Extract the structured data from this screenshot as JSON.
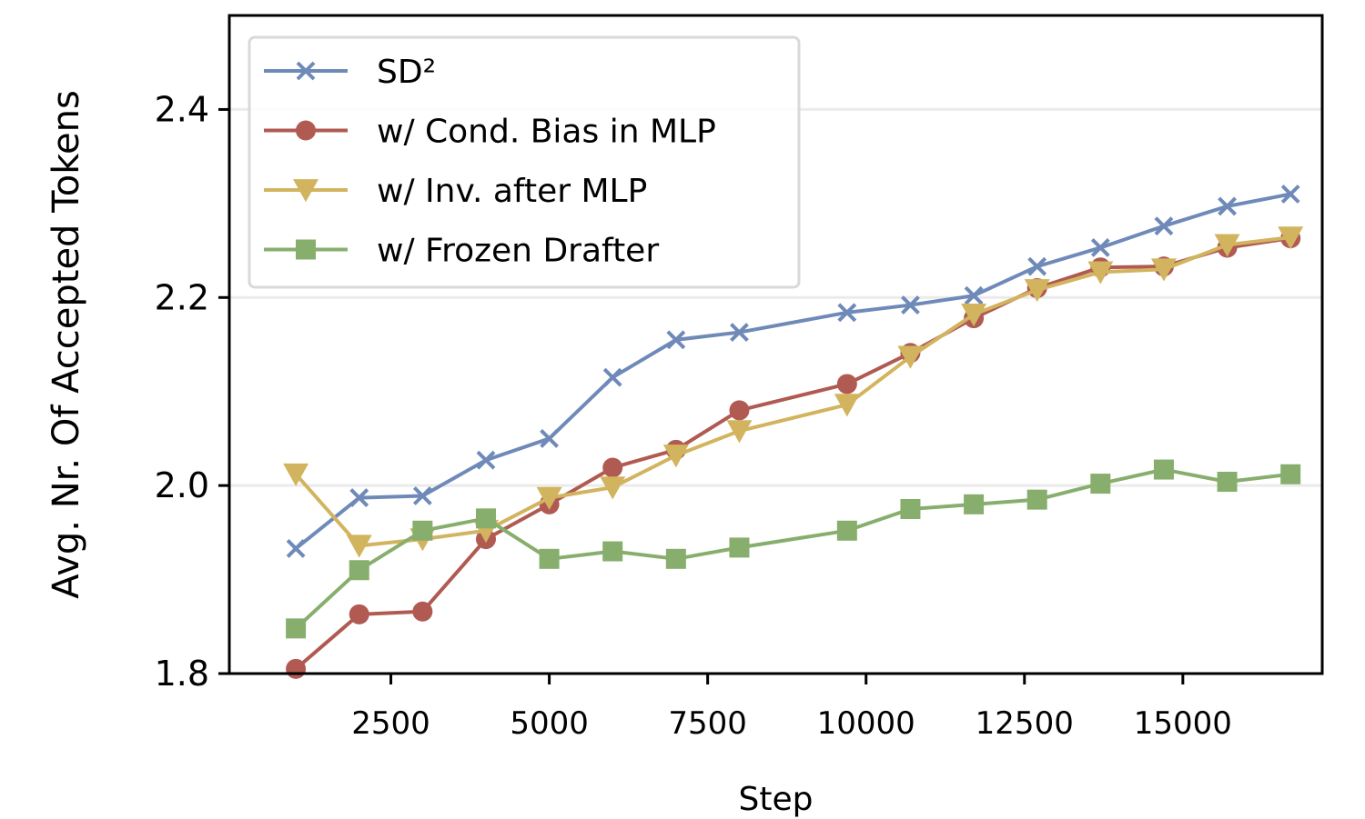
{
  "chart_data": {
    "type": "line",
    "title": "",
    "xlabel": "Step",
    "ylabel": "Avg. Nr. Of Accepted Tokens",
    "xlim": [
      -50,
      17200
    ],
    "ylim": [
      1.8,
      2.5
    ],
    "xticks": [
      2500,
      5000,
      7500,
      10000,
      12500,
      15000
    ],
    "yticks": [
      1.8,
      2.0,
      2.2,
      2.4
    ],
    "ytick_labels": [
      "1.8",
      "2.0",
      "2.2",
      "2.4"
    ],
    "grid": "horizontal",
    "legend_position": "top-left",
    "series": [
      {
        "name": "SD²",
        "color": "#6f8ab9",
        "marker": "x",
        "x": [
          1000,
          2000,
          3000,
          4000,
          5000,
          6000,
          7000,
          8000,
          9700,
          10700,
          11700,
          12700,
          13700,
          14700,
          15700,
          16700
        ],
        "y": [
          1.933,
          1.987,
          1.989,
          2.027,
          2.05,
          2.115,
          2.155,
          2.163,
          2.184,
          2.192,
          2.202,
          2.233,
          2.253,
          2.276,
          2.297,
          2.31
        ]
      },
      {
        "name": "w/ Cond. Bias in MLP",
        "color": "#b05a52",
        "marker": "circle",
        "x": [
          1000,
          2000,
          3000,
          4000,
          5000,
          6000,
          7000,
          8000,
          9700,
          10700,
          11700,
          12700,
          13700,
          14700,
          15700,
          16700
        ],
        "y": [
          1.805,
          1.863,
          1.866,
          1.943,
          1.98,
          2.019,
          2.038,
          2.08,
          2.108,
          2.141,
          2.178,
          2.21,
          2.232,
          2.233,
          2.253,
          2.263
        ]
      },
      {
        "name": "w/ Inv. after MLP",
        "color": "#d2b45f",
        "marker": "triangle-down",
        "x": [
          1000,
          2000,
          3000,
          4000,
          5000,
          6000,
          7000,
          8000,
          9700,
          10700,
          11700,
          12700,
          13700,
          14700,
          15700,
          16700
        ],
        "y": [
          2.012,
          1.936,
          1.943,
          1.952,
          1.987,
          1.998,
          2.032,
          2.058,
          2.086,
          2.137,
          2.182,
          2.208,
          2.227,
          2.23,
          2.256,
          2.264
        ]
      },
      {
        "name": "w/ Frozen Drafter",
        "color": "#88ae6d",
        "marker": "square",
        "x": [
          1000,
          2000,
          3000,
          4000,
          5000,
          6000,
          7000,
          8000,
          9700,
          10700,
          11700,
          12700,
          13700,
          14700,
          15700,
          16700
        ],
        "y": [
          1.848,
          1.91,
          1.952,
          1.965,
          1.922,
          1.93,
          1.922,
          1.934,
          1.952,
          1.975,
          1.98,
          1.985,
          2.002,
          2.017,
          2.004,
          2.012
        ]
      }
    ]
  }
}
